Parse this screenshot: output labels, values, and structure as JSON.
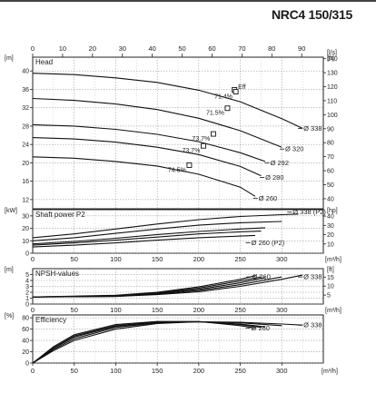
{
  "page_title": "NRC4 150/315",
  "chart_data": {
    "type": "line",
    "x_axis_top": {
      "unit": "[l/s]",
      "range": [
        0,
        100
      ],
      "ticks": [
        0,
        10,
        20,
        30,
        40,
        50,
        60,
        70,
        80,
        90
      ]
    },
    "x_axis_bottom": {
      "unit": "[m³/h]",
      "range": [
        0,
        350
      ],
      "ticks": [
        0,
        50,
        100,
        150,
        200,
        250,
        300
      ]
    },
    "panels": [
      {
        "id": "head",
        "title": "Head",
        "left_unit": "[m]",
        "right_unit": "[ft]",
        "y_range": [
          10,
          43
        ],
        "left_ticks": [
          12,
          16,
          20,
          24,
          28,
          32,
          36,
          40
        ],
        "right_ticks": [
          40,
          50,
          60,
          70,
          80,
          90,
          100,
          110,
          120,
          130,
          140
        ],
        "series": [
          {
            "name": "Ø 338",
            "x": [
              0,
              50,
              100,
              150,
              200,
              250,
              300,
              325
            ],
            "y": [
              39.5,
              39.2,
              38.5,
              37.5,
              35.8,
              33.3,
              29.6,
              27.5
            ]
          },
          {
            "name": "Ø 320",
            "x": [
              0,
              50,
              100,
              150,
              200,
              250,
              300
            ],
            "y": [
              34.0,
              33.6,
              32.8,
              31.6,
              29.7,
              27.0,
              23.4
            ]
          },
          {
            "name": "Ø 292",
            "x": [
              0,
              50,
              100,
              150,
              200,
              250,
              280
            ],
            "y": [
              28.3,
              28.0,
              27.3,
              26.2,
              24.6,
              22.2,
              20.3
            ]
          },
          {
            "name": "Ø 280",
            "x": [
              0,
              50,
              100,
              150,
              200,
              250,
              275
            ],
            "y": [
              25.5,
              25.2,
              24.5,
              23.4,
              21.8,
              19.2,
              17.2
            ]
          },
          {
            "name": "Ø 260",
            "x": [
              0,
              50,
              100,
              150,
              200,
              250,
              268
            ],
            "y": [
              21.3,
              21.0,
              20.3,
              19.3,
              17.5,
              14.7,
              12.7
            ]
          }
        ],
        "efficiency_markers": [
          {
            "label": "Eff",
            "x": 243,
            "y": 35.9
          },
          {
            "label": "71.4%",
            "x": 232,
            "y": 34.6
          },
          {
            "label": "71.5%",
            "x": 222,
            "y": 31.0
          },
          {
            "label": "73.7%",
            "x": 205,
            "y": 25.4
          },
          {
            "label": "73.7%",
            "x": 193,
            "y": 22.8
          },
          {
            "label": "74.5%",
            "x": 176,
            "y": 18.6
          }
        ],
        "curve_labels": [
          {
            "text": "Ø 338",
            "x": 325,
            "y": 27.5
          },
          {
            "text": "Ø 320",
            "x": 303,
            "y": 23.0
          },
          {
            "text": "Ø 292",
            "x": 285,
            "y": 20.0
          },
          {
            "text": "Ø 280",
            "x": 279,
            "y": 16.8
          },
          {
            "text": "Ø 260",
            "x": 271,
            "y": 12.3
          }
        ]
      },
      {
        "id": "power",
        "title": "Shaft power P2",
        "left_unit": "[kW]",
        "right_unit": "[hp]",
        "y_range": [
          0,
          35
        ],
        "left_ticks": [
          0,
          10,
          20,
          30
        ],
        "right_ticks": [
          10,
          20,
          30,
          40
        ],
        "series": [
          {
            "name": "Ø 338 (P2)",
            "x": [
              0,
              50,
              100,
              150,
              200,
              250,
              300,
              320
            ],
            "y": [
              12.5,
              15.5,
              19.5,
              23.5,
              27.0,
              29.5,
              31.0,
              31.5
            ]
          },
          {
            "name": "Ø 320",
            "x": [
              0,
              50,
              100,
              150,
              200,
              250,
              300
            ],
            "y": [
              10.0,
              12.5,
              16.0,
              19.5,
              22.5,
              24.5,
              25.5
            ]
          },
          {
            "name": "Ø 292",
            "x": [
              0,
              50,
              100,
              150,
              200,
              250,
              280
            ],
            "y": [
              7.5,
              9.5,
              12.0,
              15.0,
              17.5,
              19.5,
              20.5
            ]
          },
          {
            "name": "Ø 280",
            "x": [
              0,
              50,
              100,
              150,
              200,
              250,
              275
            ],
            "y": [
              6.5,
              8.3,
              10.5,
              13.0,
              15.5,
              17.2,
              17.8
            ]
          },
          {
            "name": "Ø 260 (P2)",
            "x": [
              0,
              50,
              100,
              150,
              200,
              250,
              268
            ],
            "y": [
              5.0,
              6.5,
              8.3,
              10.5,
              12.5,
              13.8,
              14.3
            ]
          }
        ],
        "curve_labels": [
          {
            "text": "Ø 338 (P2)",
            "x": 312,
            "y": 33
          },
          {
            "text": "Ø 260 (P2)",
            "x": 262,
            "y": 8.5
          }
        ]
      },
      {
        "id": "npsh",
        "title": "NPSH-values",
        "left_unit": "[m]",
        "right_unit": "[ft]",
        "y_range": [
          0,
          6
        ],
        "left_ticks": [
          0,
          1,
          2,
          3,
          4,
          5
        ],
        "right_ticks": [
          5,
          10,
          15
        ],
        "series": [
          {
            "name": "Ø 338",
            "x": [
              0,
              100,
              150,
              200,
              250,
              300,
              325
            ],
            "y": [
              1.2,
              1.3,
              1.6,
              2.1,
              3.0,
              4.2,
              4.9
            ]
          },
          {
            "name": "Ø 320",
            "x": [
              0,
              100,
              150,
              200,
              250,
              300
            ],
            "y": [
              1.2,
              1.3,
              1.7,
              2.3,
              3.3,
              4.6
            ]
          },
          {
            "name": "Ø 292",
            "x": [
              0,
              100,
              150,
              200,
              250,
              280
            ],
            "y": [
              1.2,
              1.4,
              1.8,
              2.5,
              3.6,
              4.5
            ]
          },
          {
            "name": "Ø 280",
            "x": [
              0,
              100,
              150,
              200,
              250,
              275
            ],
            "y": [
              1.2,
              1.4,
              1.9,
              2.7,
              3.9,
              4.6
            ]
          },
          {
            "name": "Ø 260",
            "x": [
              0,
              100,
              150,
              200,
              250,
              268
            ],
            "y": [
              1.2,
              1.5,
              2.0,
              2.9,
              4.2,
              4.8
            ]
          }
        ],
        "curve_labels": [
          {
            "text": "Ø 260",
            "x": 263,
            "y": 4.6
          },
          {
            "text": "Ø 338",
            "x": 325,
            "y": 4.6
          }
        ]
      },
      {
        "id": "efficiency",
        "title": "Efficiency",
        "left_unit": "[%]",
        "right_unit": "",
        "y_range": [
          0,
          85
        ],
        "left_ticks": [
          0,
          20,
          40,
          60,
          80
        ],
        "right_ticks": [],
        "series": [
          {
            "name": "Ø 338",
            "x": [
              0,
              25,
              50,
              100,
              150,
              200,
              250,
              300,
              325
            ],
            "y": [
              0,
              22,
              40,
              60,
              70,
              73,
              72,
              69,
              67
            ]
          },
          {
            "name": "Ø 320",
            "x": [
              0,
              25,
              50,
              100,
              150,
              200,
              250,
              300
            ],
            "y": [
              0,
              24,
              43,
              63,
              71,
              73,
              71,
              66
            ]
          },
          {
            "name": "Ø 292",
            "x": [
              0,
              25,
              50,
              100,
              150,
              200,
              250,
              280
            ],
            "y": [
              0,
              26,
              46,
              65,
              72,
              73,
              69,
              64
            ]
          },
          {
            "name": "Ø 280",
            "x": [
              0,
              25,
              50,
              100,
              150,
              200,
              250,
              275
            ],
            "y": [
              0,
              27,
              48,
              66,
              72.5,
              73,
              68,
              63
            ]
          },
          {
            "name": "Ø 260",
            "x": [
              0,
              25,
              50,
              100,
              150,
              200,
              250,
              268
            ],
            "y": [
              0,
              29,
              50,
              68,
              73.5,
              73.5,
              66,
              62
            ]
          }
        ],
        "curve_labels": [
          {
            "text": "Ø 260",
            "x": 262,
            "y": 62
          },
          {
            "text": "Ø 338",
            "x": 325,
            "y": 67
          }
        ]
      }
    ],
    "grid": true
  }
}
